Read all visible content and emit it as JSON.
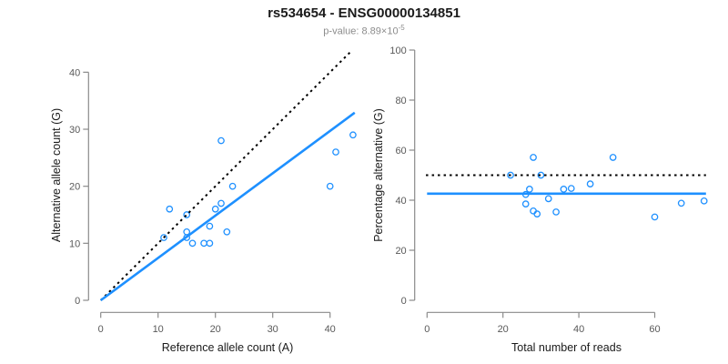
{
  "header": {
    "title": "rs534654 - ENSG00000134851",
    "pvalue_prefix": "p-value: 8.89×10",
    "pvalue_exponent": "-5"
  },
  "colors": {
    "accent_blue": "#1E90FF",
    "dotted_black": "#000000",
    "axis": "#8a8a8a",
    "tick_label": "#595959",
    "axis_title": "#1a1a1a",
    "title_text": "#1a1a1a",
    "subtitle_text": "#8c8c8c"
  },
  "chart_data": [
    {
      "type": "scatter",
      "panel": "left",
      "xlabel": "Reference allele count (A)",
      "ylabel": "Alternative allele count (G)",
      "xticks": [
        0,
        10,
        20,
        30,
        40
      ],
      "yticks": [
        0,
        10,
        20,
        30,
        40
      ],
      "xlim": [
        0,
        44.3
      ],
      "ylim": [
        0,
        44
      ],
      "grid": false,
      "point_color": "#1E90FF",
      "points": [
        [
          11,
          11
        ],
        [
          12,
          16
        ],
        [
          15,
          11
        ],
        [
          15,
          12
        ],
        [
          15,
          15
        ],
        [
          16,
          10
        ],
        [
          18,
          10
        ],
        [
          19,
          10
        ],
        [
          19,
          13
        ],
        [
          20,
          16
        ],
        [
          21,
          17
        ],
        [
          21,
          28
        ],
        [
          22,
          12
        ],
        [
          23,
          20
        ],
        [
          40,
          20
        ],
        [
          41,
          26
        ],
        [
          44,
          29
        ]
      ],
      "lines": [
        {
          "name": "identity-line",
          "style": "dotted",
          "color": "#000000",
          "x1": 0,
          "y1": 0,
          "x2": 43.7,
          "y2": 43.7
        },
        {
          "name": "fit-line",
          "style": "solid",
          "color": "#1E90FF",
          "x1": 0,
          "y1": 0,
          "x2": 44.3,
          "y2": 32.9
        }
      ]
    },
    {
      "type": "scatter",
      "panel": "right",
      "xlabel": "Total number of reads",
      "ylabel": "Percentage alternative (G)",
      "xticks": [
        0,
        20,
        40,
        60
      ],
      "yticks": [
        0,
        20,
        40,
        60,
        80,
        100
      ],
      "xlim": [
        0,
        73.5
      ],
      "ylim": [
        0,
        100
      ],
      "grid": false,
      "point_color": "#1E90FF",
      "points": [
        [
          22,
          50
        ],
        [
          26,
          38.5
        ],
        [
          26,
          42.3
        ],
        [
          27,
          44.4
        ],
        [
          28,
          35.7
        ],
        [
          28,
          57.1
        ],
        [
          29,
          34.5
        ],
        [
          30,
          50
        ],
        [
          32,
          40.6
        ],
        [
          34,
          35.3
        ],
        [
          36,
          44.4
        ],
        [
          38,
          44.7
        ],
        [
          43,
          46.5
        ],
        [
          49,
          57.1
        ],
        [
          60,
          33.3
        ],
        [
          67,
          38.8
        ],
        [
          73,
          39.7
        ]
      ],
      "lines": [
        {
          "name": "null-line-50pct",
          "style": "dotted",
          "color": "#000000",
          "x1": -0.3,
          "y1": 50,
          "x2": 73.5,
          "y2": 50
        },
        {
          "name": "mean-ratio-line",
          "style": "solid",
          "color": "#1E90FF",
          "x1": 0,
          "y1": 42.6,
          "x2": 73.5,
          "y2": 42.6
        }
      ]
    }
  ]
}
